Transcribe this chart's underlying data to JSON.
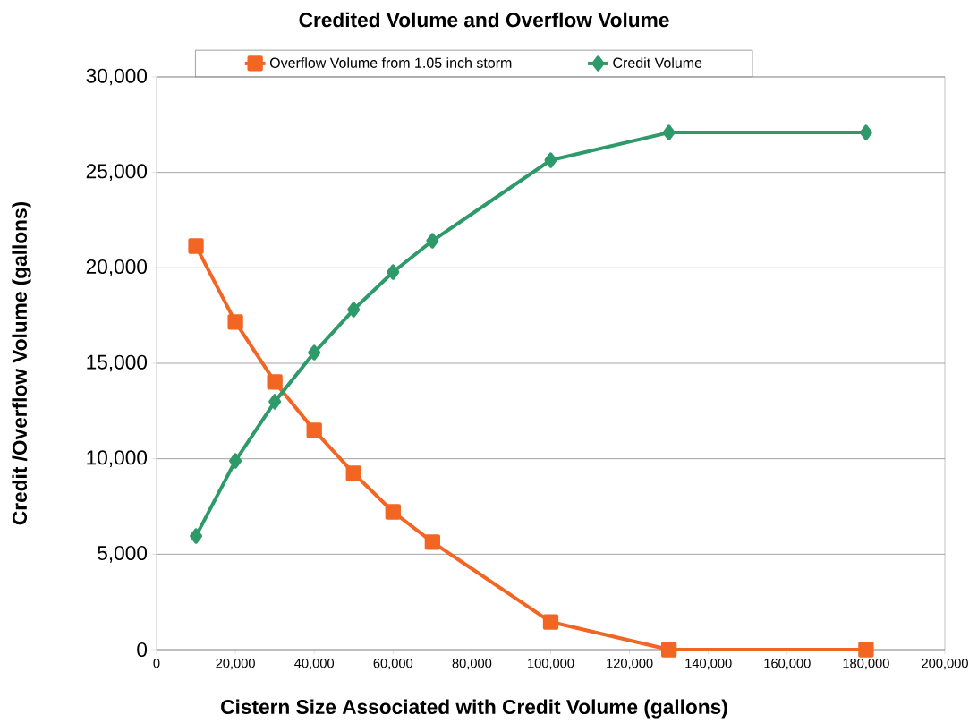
{
  "chart_data": {
    "type": "line",
    "title": "Credited Volume and Overflow Volume",
    "xlabel": "Cistern Size Associated with Credit Volume (gallons)",
    "ylabel": "Credit /Overflow Volume (gallons)",
    "x": [
      10000,
      20000,
      30000,
      40000,
      50000,
      60000,
      70000,
      100000,
      130000,
      180000
    ],
    "series": [
      {
        "name": "Overflow Volume from 1.05  inch storm",
        "color": "#f26522",
        "marker": "square",
        "values": [
          21140,
          17160,
          14020,
          11490,
          9240,
          7220,
          5630,
          1450,
          0,
          0
        ]
      },
      {
        "name": "Credit Volume",
        "color": "#2e9a6a",
        "marker": "diamond",
        "values": [
          5950,
          9890,
          12990,
          15560,
          17810,
          19780,
          21420,
          25640,
          27090,
          27090
        ]
      }
    ],
    "xlim": [
      0,
      200000
    ],
    "ylim": [
      0,
      30000
    ],
    "xticks": [
      0,
      {
        "value": 20000,
        "label": "20,000"
      },
      {
        "value": 40000,
        "label": "40,000"
      },
      {
        "value": 60000,
        "label": "60,000"
      },
      {
        "value": 80000,
        "label": "80,000"
      },
      {
        "value": 100000,
        "label": "100,000"
      },
      {
        "value": 120000,
        "label": "120,000"
      },
      {
        "value": 140000,
        "label": "140,000"
      },
      {
        "value": 160000,
        "label": "160,000"
      },
      {
        "value": 180000,
        "label": "180,000"
      },
      {
        "value": 200000,
        "label": "200,000"
      }
    ],
    "yticks": [
      0,
      {
        "value": 5000,
        "label": "5,000"
      },
      {
        "value": 10000,
        "label": "10,000"
      },
      {
        "value": 15000,
        "label": "15,000"
      },
      {
        "value": 20000,
        "label": "20,000"
      },
      {
        "value": 25000,
        "label": "25,000"
      },
      {
        "value": 30000,
        "label": "30,000"
      }
    ],
    "grid": "y",
    "legend": "top",
    "line_style": "solid"
  }
}
